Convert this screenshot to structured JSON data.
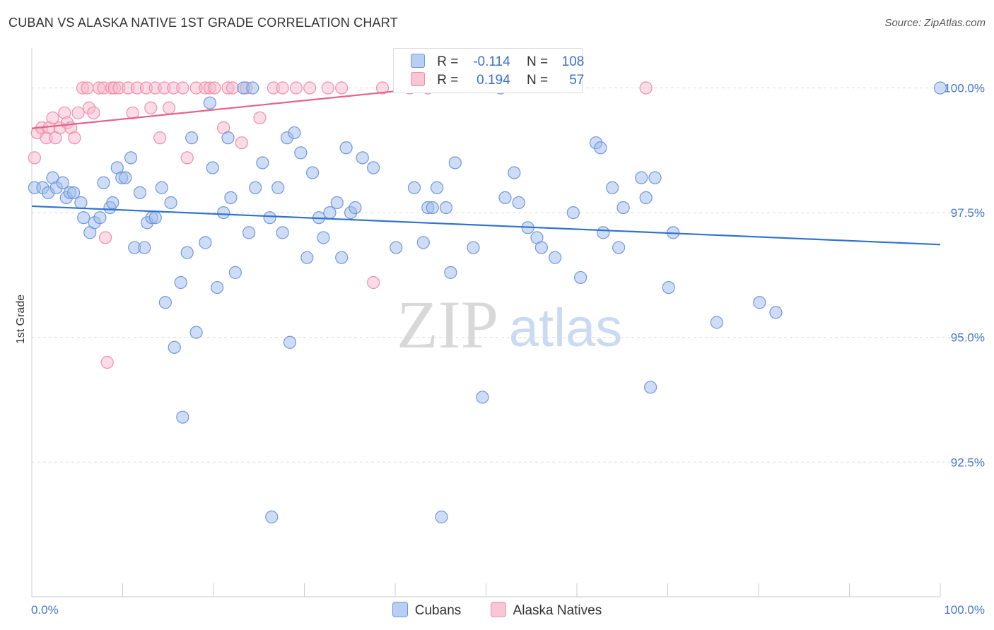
{
  "header": {
    "title": "CUBAN VS ALASKA NATIVE 1ST GRADE CORRELATION CHART",
    "source": "Source: ZipAtlas.com"
  },
  "legend": {
    "rows": [
      {
        "r_label": "R =",
        "r_value": "-0.114",
        "n_label": "N =",
        "n_value": "108"
      },
      {
        "r_label": "R =",
        "r_value": "0.194",
        "n_label": "N =",
        "n_value": "57"
      }
    ]
  },
  "watermark": {
    "zip": "ZIP",
    "atlas": "atlas"
  },
  "chart_data": {
    "type": "scatter",
    "title": "CUBAN VS ALASKA NATIVE 1ST GRADE CORRELATION CHART",
    "xlabel": "",
    "ylabel": "1st Grade",
    "xlim": [
      0,
      100
    ],
    "ylim": [
      89.8,
      100.8
    ],
    "x_tick_labels": [
      "0.0%",
      "100.0%"
    ],
    "y_ticks": [
      92.5,
      95.0,
      97.5,
      100.0
    ],
    "y_tick_labels": [
      "92.5%",
      "95.0%",
      "97.5%",
      "100.0%"
    ],
    "grid": true,
    "legend_position": "bottom",
    "series": [
      {
        "name": "Cubans",
        "color": "#9dbbec",
        "edge_color": "#6f98dd",
        "trend_color": "#2f72d0",
        "trend": {
          "x": [
            0,
            100
          ],
          "y": [
            97.63,
            96.86
          ]
        },
        "points": [
          [
            0.3,
            98.0
          ],
          [
            1.2,
            98.0
          ],
          [
            1.8,
            97.9
          ],
          [
            2.3,
            98.2
          ],
          [
            2.7,
            98.0
          ],
          [
            3.4,
            98.1
          ],
          [
            3.8,
            97.8
          ],
          [
            4.2,
            97.9
          ],
          [
            4.6,
            97.9
          ],
          [
            5.4,
            97.7
          ],
          [
            5.7,
            97.4
          ],
          [
            6.4,
            97.1
          ],
          [
            6.9,
            97.3
          ],
          [
            7.5,
            97.4
          ],
          [
            7.9,
            98.1
          ],
          [
            8.6,
            97.6
          ],
          [
            8.9,
            97.7
          ],
          [
            9.4,
            98.4
          ],
          [
            9.9,
            98.2
          ],
          [
            10.3,
            98.2
          ],
          [
            10.9,
            98.6
          ],
          [
            11.3,
            96.8
          ],
          [
            11.9,
            97.9
          ],
          [
            12.4,
            96.8
          ],
          [
            12.7,
            97.3
          ],
          [
            13.2,
            97.4
          ],
          [
            13.6,
            97.4
          ],
          [
            14.3,
            98.0
          ],
          [
            14.7,
            95.7
          ],
          [
            15.3,
            97.7
          ],
          [
            15.7,
            94.8
          ],
          [
            16.4,
            96.1
          ],
          [
            16.6,
            93.4
          ],
          [
            17.1,
            96.7
          ],
          [
            17.6,
            99.0
          ],
          [
            18.1,
            95.1
          ],
          [
            19.1,
            96.9
          ],
          [
            19.6,
            99.7
          ],
          [
            19.9,
            98.4
          ],
          [
            20.4,
            96.0
          ],
          [
            21.1,
            97.5
          ],
          [
            21.6,
            99.0
          ],
          [
            21.9,
            97.8
          ],
          [
            22.4,
            96.3
          ],
          [
            23.3,
            100.0
          ],
          [
            23.9,
            97.1
          ],
          [
            24.3,
            100.0
          ],
          [
            24.6,
            98.0
          ],
          [
            25.4,
            98.5
          ],
          [
            26.2,
            97.4
          ],
          [
            26.4,
            91.4
          ],
          [
            27.1,
            98.0
          ],
          [
            27.6,
            97.1
          ],
          [
            28.1,
            99.0
          ],
          [
            28.4,
            94.9
          ],
          [
            28.9,
            99.1
          ],
          [
            29.6,
            98.7
          ],
          [
            30.3,
            96.6
          ],
          [
            30.9,
            98.3
          ],
          [
            31.6,
            97.4
          ],
          [
            32.1,
            97.0
          ],
          [
            32.8,
            97.5
          ],
          [
            33.6,
            97.7
          ],
          [
            34.1,
            96.6
          ],
          [
            34.6,
            98.8
          ],
          [
            35.1,
            97.5
          ],
          [
            35.6,
            97.6
          ],
          [
            36.4,
            98.6
          ],
          [
            37.6,
            98.4
          ],
          [
            40.1,
            96.8
          ],
          [
            42.1,
            98.0
          ],
          [
            43.1,
            96.9
          ],
          [
            43.6,
            97.6
          ],
          [
            44.1,
            97.6
          ],
          [
            44.6,
            98.0
          ],
          [
            45.1,
            91.4
          ],
          [
            45.6,
            97.6
          ],
          [
            46.1,
            96.3
          ],
          [
            46.6,
            98.5
          ],
          [
            48.6,
            96.8
          ],
          [
            49.6,
            93.8
          ],
          [
            51.6,
            100.0
          ],
          [
            52.1,
            97.8
          ],
          [
            53.1,
            98.3
          ],
          [
            53.6,
            97.7
          ],
          [
            54.6,
            97.2
          ],
          [
            55.6,
            97.0
          ],
          [
            56.1,
            96.8
          ],
          [
            57.6,
            96.6
          ],
          [
            59.6,
            97.5
          ],
          [
            60.4,
            96.2
          ],
          [
            62.1,
            98.9
          ],
          [
            62.6,
            98.8
          ],
          [
            62.9,
            97.1
          ],
          [
            63.9,
            98.0
          ],
          [
            64.6,
            96.8
          ],
          [
            65.1,
            97.6
          ],
          [
            67.1,
            98.2
          ],
          [
            67.6,
            97.8
          ],
          [
            68.1,
            94.0
          ],
          [
            68.6,
            98.2
          ],
          [
            70.1,
            96.0
          ],
          [
            70.6,
            97.1
          ],
          [
            75.4,
            95.3
          ],
          [
            80.1,
            95.7
          ],
          [
            81.9,
            95.5
          ],
          [
            100.0,
            100.0
          ]
        ]
      },
      {
        "name": "Alaska Natives",
        "color": "#f7b8cb",
        "edge_color": "#ee8fad",
        "trend_color": "#e5628e",
        "trend": {
          "x": [
            0,
            43.6
          ],
          "y": [
            99.19,
            100.0
          ]
        },
        "points": [
          [
            0.3,
            98.6
          ],
          [
            0.6,
            99.1
          ],
          [
            1.1,
            99.2
          ],
          [
            1.6,
            99.0
          ],
          [
            1.9,
            99.2
          ],
          [
            2.3,
            99.4
          ],
          [
            2.6,
            99.0
          ],
          [
            3.1,
            99.2
          ],
          [
            3.6,
            99.5
          ],
          [
            3.9,
            99.3
          ],
          [
            4.3,
            99.2
          ],
          [
            4.7,
            99.0
          ],
          [
            5.1,
            99.5
          ],
          [
            5.6,
            100.0
          ],
          [
            6.1,
            100.0
          ],
          [
            6.3,
            99.6
          ],
          [
            6.8,
            99.5
          ],
          [
            7.4,
            100.0
          ],
          [
            7.9,
            100.0
          ],
          [
            8.1,
            97.0
          ],
          [
            8.3,
            94.5
          ],
          [
            8.8,
            100.0
          ],
          [
            9.1,
            100.0
          ],
          [
            9.6,
            100.0
          ],
          [
            10.6,
            100.0
          ],
          [
            11.1,
            99.5
          ],
          [
            11.6,
            100.0
          ],
          [
            12.6,
            100.0
          ],
          [
            13.1,
            99.6
          ],
          [
            13.6,
            100.0
          ],
          [
            14.1,
            99.0
          ],
          [
            14.6,
            100.0
          ],
          [
            15.1,
            99.6
          ],
          [
            15.6,
            100.0
          ],
          [
            16.6,
            100.0
          ],
          [
            17.1,
            98.6
          ],
          [
            18.1,
            100.0
          ],
          [
            19.1,
            100.0
          ],
          [
            19.6,
            100.0
          ],
          [
            20.1,
            100.0
          ],
          [
            21.1,
            99.2
          ],
          [
            21.6,
            100.0
          ],
          [
            22.1,
            100.0
          ],
          [
            23.1,
            98.9
          ],
          [
            23.6,
            100.0
          ],
          [
            25.1,
            99.4
          ],
          [
            26.6,
            100.0
          ],
          [
            27.6,
            100.0
          ],
          [
            29.1,
            100.0
          ],
          [
            30.6,
            100.0
          ],
          [
            32.6,
            100.0
          ],
          [
            34.1,
            100.0
          ],
          [
            37.6,
            96.1
          ],
          [
            38.6,
            100.0
          ],
          [
            41.6,
            100.0
          ],
          [
            43.6,
            100.0
          ],
          [
            67.6,
            100.0
          ]
        ]
      }
    ]
  }
}
